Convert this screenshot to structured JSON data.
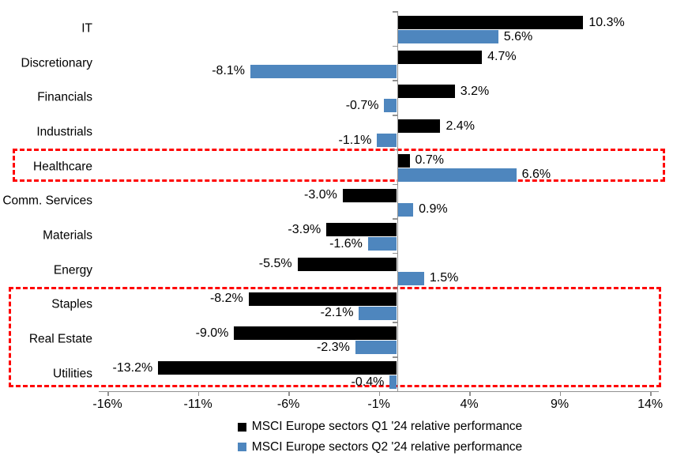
{
  "chart_data": {
    "type": "bar",
    "orientation": "horizontal",
    "title": "",
    "categories": [
      "IT",
      "Discretionary",
      "Financials",
      "Industrials",
      "Healthcare",
      "Comm. Services",
      "Materials",
      "Energy",
      "Staples",
      "Real Estate",
      "Utilities"
    ],
    "series": [
      {
        "name": "MSCI Europe sectors Q1 '24 relative performance",
        "color": "#000000",
        "values": [
          10.3,
          4.7,
          3.2,
          2.4,
          0.7,
          -3.0,
          -3.9,
          -5.5,
          -8.2,
          -9.0,
          -13.2
        ]
      },
      {
        "name": "MSCI Europe sectors Q2 '24 relative performance",
        "color": "#4E86BE",
        "values": [
          5.6,
          -8.1,
          -0.7,
          -1.1,
          6.6,
          0.9,
          -1.6,
          1.5,
          -2.1,
          -2.3,
          -0.4
        ]
      }
    ],
    "data_labels": {
      "q1": [
        "10.3%",
        "4.7%",
        "3.2%",
        "2.4%",
        "0.7%",
        "-3.0%",
        "-3.9%",
        "-5.5%",
        "-8.2%",
        "-9.0%",
        "-13.2%"
      ],
      "q2": [
        "5.6%",
        "-8.1%",
        "-0.7%",
        "-1.1%",
        "6.6%",
        "0.9%",
        "-1.6%",
        "1.5%",
        "-2.1%",
        "-2.3%",
        "-0.4%"
      ]
    },
    "x_ticks": [
      "-16%",
      "-11%",
      "-6%",
      "-1%",
      "4%",
      "9%",
      "14%"
    ],
    "x_tick_values": [
      -16,
      -11,
      -6,
      -1,
      4,
      9,
      14
    ],
    "xlim": [
      -16.5,
      14.5
    ],
    "grid": false,
    "legend_position": "bottom",
    "highlights": [
      {
        "label": "healthcare-highlight",
        "first_category": "Healthcare",
        "last_category": "Healthcare",
        "color": "#FF0000"
      },
      {
        "label": "defensives-highlight",
        "first_category": "Staples",
        "last_category": "Utilities",
        "color": "#FF0000"
      }
    ],
    "axis_color": "#919191",
    "background": "#FFFFFF"
  }
}
